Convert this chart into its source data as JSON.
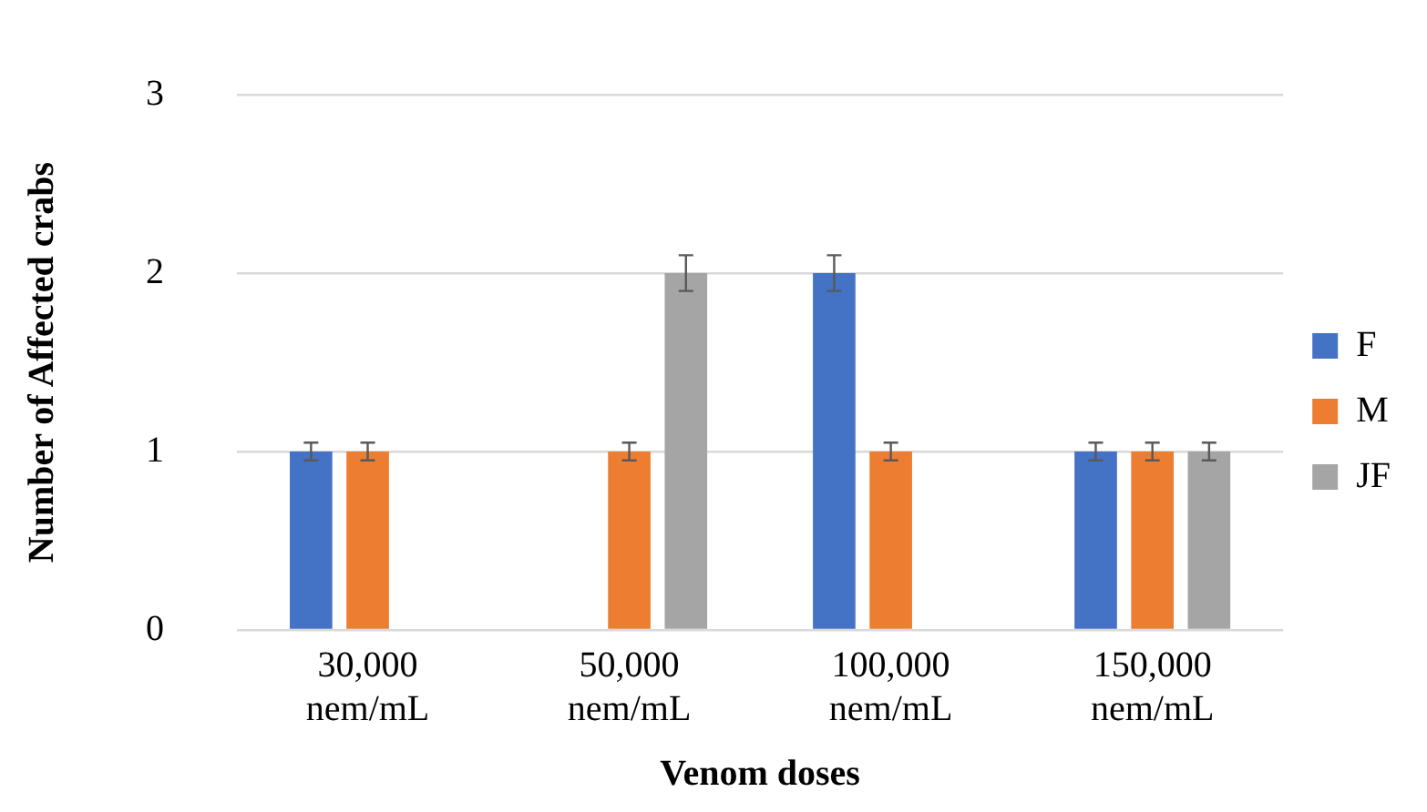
{
  "chart_data": {
    "type": "bar",
    "xlabel": "Venom doses",
    "ylabel": "Number of Affected crabs",
    "categories": [
      "30,000 nem/mL",
      "50,000 nem/mL",
      "100,000 nem/mL",
      "150,000 nem/mL"
    ],
    "series": [
      {
        "name": "F",
        "color": "#4472c4",
        "values": [
          1,
          0,
          2,
          1
        ],
        "errors": [
          0.05,
          null,
          0.1,
          0.05
        ]
      },
      {
        "name": "M",
        "color": "#ed7d31",
        "values": [
          1,
          1,
          1,
          1
        ],
        "errors": [
          0.05,
          0.05,
          0.05,
          0.05
        ]
      },
      {
        "name": "JF",
        "color": "#a5a5a5",
        "values": [
          0,
          2,
          0,
          1
        ],
        "errors": [
          null,
          0.1,
          null,
          0.05
        ]
      }
    ],
    "ylim": [
      0,
      3
    ],
    "yticks": [
      0,
      1,
      2,
      3
    ],
    "grid": "y",
    "legend": "right"
  }
}
